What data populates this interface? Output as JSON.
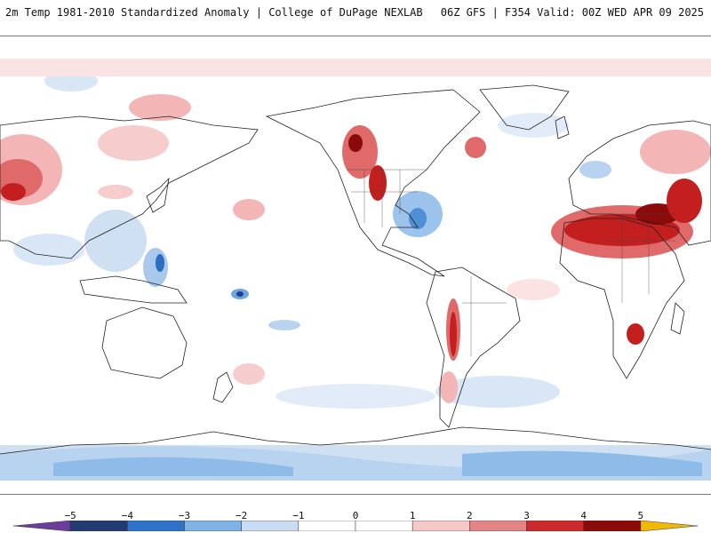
{
  "header": {
    "title_left": "2m Temp 1981-2010 Standardized Anomaly | College of DuPage NEXLAB",
    "title_right": "06Z GFS | F354 Valid: 00Z WED APR 09 2025"
  },
  "colorbar": {
    "ticks": [
      "−5",
      "−4",
      "−3",
      "−2",
      "−1",
      "0",
      "1",
      "2",
      "3",
      "4",
      "5"
    ],
    "colors": [
      "#6a3d9a",
      "#243a73",
      "#2c73c9",
      "#7fb2e5",
      "#c9dcf2",
      "#ffffff",
      "#ffffff",
      "#f6c8c8",
      "#e48484",
      "#cc2a2a",
      "#8b0a0a",
      "#f2b900"
    ]
  },
  "map": {
    "land_outline_color": "#222222",
    "warm_colors": [
      "#fbe3e3",
      "#f3b5b5",
      "#e06a6a",
      "#c41f1f",
      "#8b0a0a"
    ],
    "cool_colors": [
      "#e2ecf8",
      "#b8d3ef",
      "#6aa6e0",
      "#2c6fc0",
      "#1f3f8a"
    ]
  }
}
